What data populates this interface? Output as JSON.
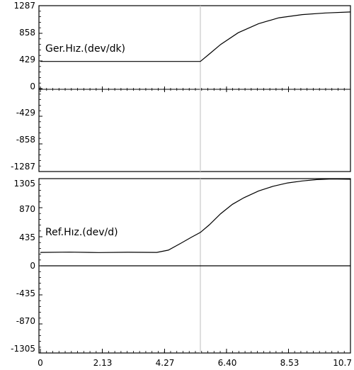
{
  "chart_data": [
    {
      "type": "line",
      "title": "",
      "label": "Ger.Hız.(dev/dk)",
      "xlabel": "",
      "ylabel": "",
      "xlim": [
        0,
        10.66
      ],
      "ylim": [
        -1287,
        1287
      ],
      "yticks": [
        "1287",
        "858",
        "429",
        "0",
        "-429",
        "-858",
        "-1287"
      ],
      "grid": false,
      "series": [
        {
          "color": "#000000",
          "x": [
            0,
            5.5,
            5.8,
            6.2,
            6.8,
            7.5,
            8.2,
            9.0,
            9.8,
            10.66
          ],
          "y": [
            429,
            429,
            540,
            690,
            870,
            1010,
            1100,
            1150,
            1175,
            1190
          ]
        }
      ]
    },
    {
      "type": "line",
      "title": "",
      "label": "Ref.Hız.(dev/d)",
      "xlabel": "",
      "ylabel": "",
      "xlim": [
        0,
        10.66
      ],
      "ylim": [
        -1305,
        1305
      ],
      "yticks": [
        "1305",
        "870",
        "435",
        "0",
        "-435",
        "-870",
        "-1305"
      ],
      "xticks": [
        "0",
        "2.13",
        "4.27",
        "6.40",
        "8.53",
        "10.7"
      ],
      "grid": false,
      "series": [
        {
          "color": "#000000",
          "x": [
            0,
            1.0,
            2.0,
            3.0,
            4.0,
            4.4,
            4.8,
            5.2,
            5.5,
            5.8,
            6.2,
            6.6,
            7.0,
            7.5,
            8.0,
            8.5,
            9.0,
            9.5,
            10.0,
            10.66
          ],
          "y": [
            200,
            205,
            198,
            203,
            200,
            235,
            330,
            430,
            500,
            610,
            780,
            920,
            1020,
            1120,
            1190,
            1240,
            1270,
            1290,
            1300,
            1295
          ]
        },
        {
          "color": "#000000",
          "x": [
            0,
            10.66
          ],
          "y": [
            0,
            0
          ]
        }
      ]
    }
  ],
  "cursor_x": 5.5
}
